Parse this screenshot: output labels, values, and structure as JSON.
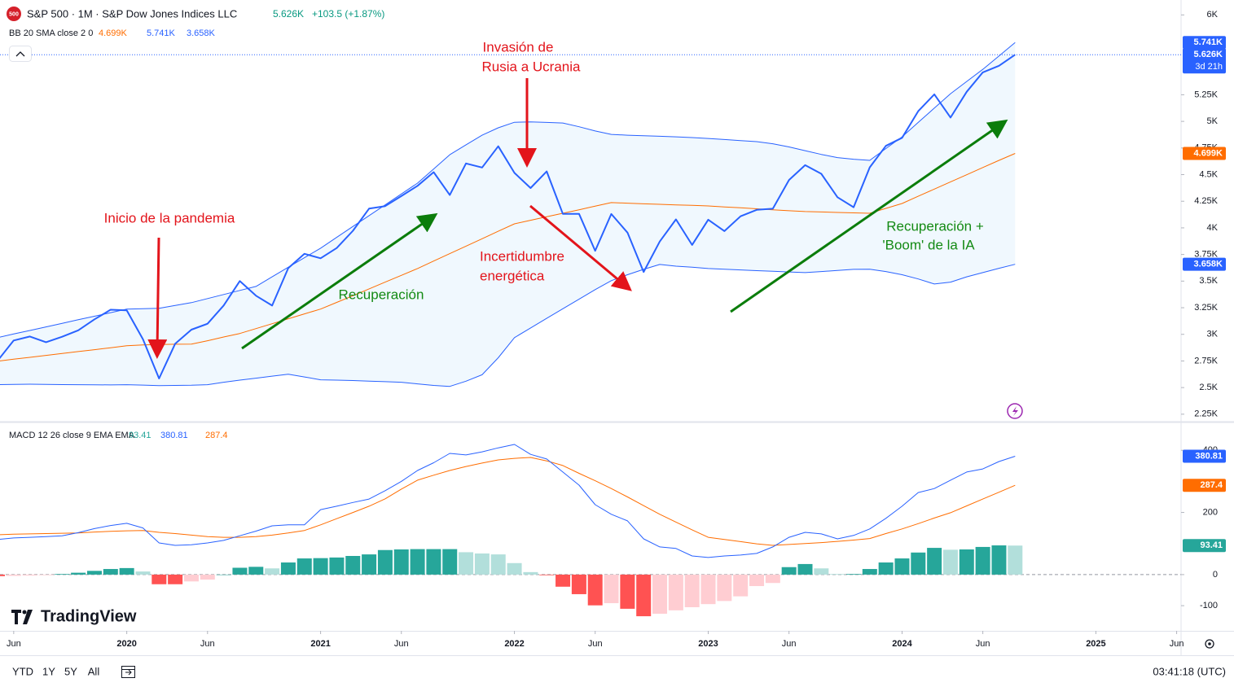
{
  "header": {
    "logo": "500",
    "title": "S&P 500 · 1M · S&P Dow Jones Indices LLC",
    "change": "+103.5 (+1.87%)",
    "countdown": "3d 21h"
  },
  "watermark": "TradingView",
  "toolbar": {
    "ranges": [
      "YTD",
      "1Y",
      "5Y",
      "All"
    ],
    "clock": "03:41:18 (UTC)"
  },
  "chart_data": [
    {
      "type": "line",
      "legend_title": "BB 20 SMA close 2 0",
      "x": [
        "2019-05",
        "2019-06",
        "2019-07",
        "2019-08",
        "2019-09",
        "2019-10",
        "2019-11",
        "2019-12",
        "2020-01",
        "2020-02",
        "2020-03",
        "2020-04",
        "2020-05",
        "2020-06",
        "2020-07",
        "2020-08",
        "2020-09",
        "2020-10",
        "2020-11",
        "2020-12",
        "2021-01",
        "2021-02",
        "2021-03",
        "2021-04",
        "2021-05",
        "2021-06",
        "2021-07",
        "2021-08",
        "2021-09",
        "2021-10",
        "2021-11",
        "2021-12",
        "2022-01",
        "2022-02",
        "2022-03",
        "2022-04",
        "2022-05",
        "2022-06",
        "2022-07",
        "2022-08",
        "2022-09",
        "2022-10",
        "2022-11",
        "2022-12",
        "2023-01",
        "2023-02",
        "2023-03",
        "2023-04",
        "2023-05",
        "2023-06",
        "2023-07",
        "2023-08",
        "2023-09",
        "2023-10",
        "2023-11",
        "2023-12",
        "2024-01",
        "2024-02",
        "2024-03",
        "2024-04",
        "2024-05",
        "2024-06",
        "2024-07",
        "2024-08"
      ],
      "xlim": [
        "2019-05",
        "2025-06"
      ],
      "ylim": [
        2180,
        6140
      ],
      "yticks": [
        {
          "value": 2250,
          "label": "2.25K"
        },
        {
          "value": 2500,
          "label": "2.5K"
        },
        {
          "value": 2750,
          "label": "2.75K"
        },
        {
          "value": 3000,
          "label": "3K"
        },
        {
          "value": 3250,
          "label": "3.25K"
        },
        {
          "value": 3500,
          "label": "3.5K"
        },
        {
          "value": 3750,
          "label": "3.75K"
        },
        {
          "value": 4000,
          "label": "4K"
        },
        {
          "value": 4250,
          "label": "4.25K"
        },
        {
          "value": 4500,
          "label": "4.5K"
        },
        {
          "value": 4750,
          "label": "4.75K"
        },
        {
          "value": 5000,
          "label": "5K"
        },
        {
          "value": 5250,
          "label": "5.25K"
        },
        {
          "value": 6000,
          "label": "6K"
        }
      ],
      "band_color": "#e3f2fd",
      "series": [
        {
          "color": "#2962ff",
          "last_label": "5.626K",
          "values": [
            2752,
            2942,
            2980,
            2926,
            2977,
            3038,
            3141,
            3231,
            3226,
            2954,
            2585,
            2912,
            3044,
            3100,
            3271,
            3500,
            3363,
            3270,
            3622,
            3756,
            3714,
            3811,
            3973,
            4181,
            4204,
            4298,
            4395,
            4523,
            4308,
            4605,
            4567,
            4766,
            4516,
            4374,
            4530,
            4132,
            4132,
            3785,
            4130,
            3955,
            3586,
            3872,
            4080,
            3840,
            4077,
            3970,
            4109,
            4169,
            4180,
            4450,
            4589,
            4508,
            4288,
            4194,
            4568,
            4770,
            4846,
            5096,
            5254,
            5036,
            5278,
            5460,
            5522,
            5626
          ]
        },
        {
          "color": "#2962ff",
          "last_label": "5.741K",
          "values": [
            2969,
            3003,
            3036,
            3070,
            3103,
            3137,
            3170,
            3204,
            3237,
            3240,
            3245,
            3272,
            3298,
            3336,
            3374,
            3412,
            3450,
            3540,
            3630,
            3720,
            3809,
            3911,
            4013,
            4115,
            4216,
            4318,
            4420,
            4553,
            4687,
            4780,
            4870,
            4940,
            4992,
            4995,
            4990,
            4985,
            4950,
            4910,
            4878,
            4870,
            4865,
            4860,
            4855,
            4848,
            4840,
            4830,
            4820,
            4810,
            4790,
            4760,
            4725,
            4690,
            4660,
            4645,
            4634,
            4745,
            4855,
            4990,
            5125,
            5260,
            5375,
            5489,
            5615,
            5741
          ]
        },
        {
          "color": "#ff6d00",
          "last_label": "4.699K",
          "values": [
            2748,
            2766,
            2784,
            2802,
            2820,
            2838,
            2856,
            2874,
            2893,
            2900,
            2905,
            2907,
            2908,
            2940,
            2975,
            3008,
            3054,
            3100,
            3146,
            3192,
            3237,
            3300,
            3363,
            3427,
            3490,
            3554,
            3618,
            3688,
            3758,
            3828,
            3898,
            3968,
            4038,
            4071,
            4104,
            4137,
            4170,
            4204,
            4237,
            4232,
            4226,
            4221,
            4216,
            4211,
            4206,
            4197,
            4188,
            4179,
            4170,
            4161,
            4153,
            4149,
            4145,
            4141,
            4137,
            4183,
            4229,
            4297,
            4364,
            4432,
            4499,
            4567,
            4634,
            4699
          ]
        },
        {
          "color": "#2962ff",
          "last_label": "3.658K",
          "values": [
            2527,
            2530,
            2532,
            2530,
            2528,
            2527,
            2526,
            2525,
            2527,
            2523,
            2519,
            2520,
            2522,
            2527,
            2550,
            2570,
            2588,
            2607,
            2626,
            2600,
            2573,
            2570,
            2566,
            2560,
            2555,
            2550,
            2535,
            2520,
            2511,
            2560,
            2620,
            2780,
            2969,
            3060,
            3150,
            3240,
            3330,
            3420,
            3504,
            3560,
            3610,
            3656,
            3640,
            3630,
            3618,
            3612,
            3605,
            3598,
            3592,
            3586,
            3580,
            3590,
            3600,
            3610,
            3612,
            3590,
            3560,
            3520,
            3473,
            3490,
            3540,
            3580,
            3620,
            3658
          ]
        }
      ],
      "annotations": [
        {
          "lines": [
            "Inicio de la pandemia"
          ],
          "color": "#e3141b"
        },
        {
          "lines": [
            "Invasión de",
            "Rusia a Ucrania"
          ],
          "color": "#e3141b"
        },
        {
          "lines": [
            "Recuperación"
          ],
          "color": "#138a13"
        },
        {
          "lines": [
            "Incertidumbre",
            "energética"
          ],
          "color": "#e3141b"
        },
        {
          "lines": [
            "Recuperación +",
            "'Boom' de la IA"
          ],
          "color": "#138a13"
        }
      ]
    },
    {
      "type": "macd",
      "legend_title": "MACD 12 26 close 9 EMA EMA",
      "x": [
        "2019-05",
        "2019-06",
        "2019-07",
        "2019-08",
        "2019-09",
        "2019-10",
        "2019-11",
        "2019-12",
        "2020-01",
        "2020-02",
        "2020-03",
        "2020-04",
        "2020-05",
        "2020-06",
        "2020-07",
        "2020-08",
        "2020-09",
        "2020-10",
        "2020-11",
        "2020-12",
        "2021-01",
        "2021-02",
        "2021-03",
        "2021-04",
        "2021-05",
        "2021-06",
        "2021-07",
        "2021-08",
        "2021-09",
        "2021-10",
        "2021-11",
        "2021-12",
        "2022-01",
        "2022-02",
        "2022-03",
        "2022-04",
        "2022-05",
        "2022-06",
        "2022-07",
        "2022-08",
        "2022-09",
        "2022-10",
        "2022-11",
        "2022-12",
        "2023-01",
        "2023-02",
        "2023-03",
        "2023-04",
        "2023-05",
        "2023-06",
        "2023-07",
        "2023-08",
        "2023-09",
        "2023-10",
        "2023-11",
        "2023-12",
        "2024-01",
        "2024-02",
        "2024-03",
        "2024-04",
        "2024-05",
        "2024-06",
        "2024-07",
        "2024-08"
      ],
      "xlim": [
        "2019-05",
        "2025-06"
      ],
      "xticks": [
        {
          "value": "2019-06",
          "label": "Jun"
        },
        {
          "value": "2020-01",
          "label": "2020"
        },
        {
          "value": "2020-06",
          "label": "Jun"
        },
        {
          "value": "2021-01",
          "label": "2021"
        },
        {
          "value": "2021-06",
          "label": "Jun"
        },
        {
          "value": "2022-01",
          "label": "2022"
        },
        {
          "value": "2022-06",
          "label": "Jun"
        },
        {
          "value": "2023-01",
          "label": "2023"
        },
        {
          "value": "2023-06",
          "label": "Jun"
        },
        {
          "value": "2024-01",
          "label": "2024"
        },
        {
          "value": "2024-06",
          "label": "Jun"
        },
        {
          "value": "2025-01",
          "label": "2025"
        },
        {
          "value": "2025-06",
          "label": "Jun"
        }
      ],
      "ylim": [
        -181,
        487
      ],
      "yticks": [
        -100,
        0,
        200,
        400
      ],
      "histogram": {
        "colors": [
          "#26a69a",
          "#b2dfdb",
          "#ff5252",
          "#ffcdd2"
        ],
        "values": [
          -5,
          -4,
          -3,
          -2,
          2,
          6,
          12,
          18,
          21,
          10,
          -31,
          -31,
          -22,
          -16,
          0,
          22,
          25,
          20,
          39,
          52,
          53,
          55,
          60,
          65,
          79,
          81,
          82,
          82,
          82,
          72,
          68,
          65,
          37,
          8,
          -2,
          -39,
          -63,
          -99,
          -92,
          -110,
          -134,
          -126,
          -115,
          -105,
          -95,
          -85,
          -70,
          -37,
          -27,
          24,
          34,
          20,
          2,
          2,
          18,
          39,
          52,
          71,
          86,
          80,
          81,
          89,
          94,
          93.41
        ]
      },
      "series": [
        {
          "color": "#2962ff",
          "values": [
            113,
            118,
            120,
            122,
            125,
            135,
            148,
            158,
            165,
            150,
            102,
            94,
            96,
            102,
            110,
            125,
            140,
            157,
            160,
            160,
            209,
            220,
            232,
            243,
            270,
            300,
            335,
            360,
            390,
            385,
            395,
            408,
            419,
            387,
            372,
            330,
            288,
            225,
            194,
            173,
            115,
            89,
            84,
            60,
            55,
            60,
            63,
            68,
            89,
            120,
            136,
            131,
            115,
            126,
            147,
            181,
            220,
            264,
            277,
            304,
            330,
            340,
            364,
            380.81
          ]
        },
        {
          "color": "#ff6d00",
          "values": [
            128,
            130,
            131,
            132,
            133,
            134,
            137,
            139,
            141,
            142,
            136,
            132,
            127,
            122,
            120,
            120,
            122,
            127,
            134,
            142,
            160,
            180,
            200,
            220,
            244,
            275,
            304,
            320,
            335,
            348,
            359,
            369,
            374,
            377,
            366,
            351,
            326,
            302,
            277,
            250,
            222,
            194,
            169,
            144,
            120,
            113,
            106,
            99,
            94,
            97,
            100,
            103,
            107,
            111,
            116,
            132,
            147,
            164,
            182,
            199,
            221,
            243,
            265,
            287.4
          ]
        }
      ]
    }
  ]
}
